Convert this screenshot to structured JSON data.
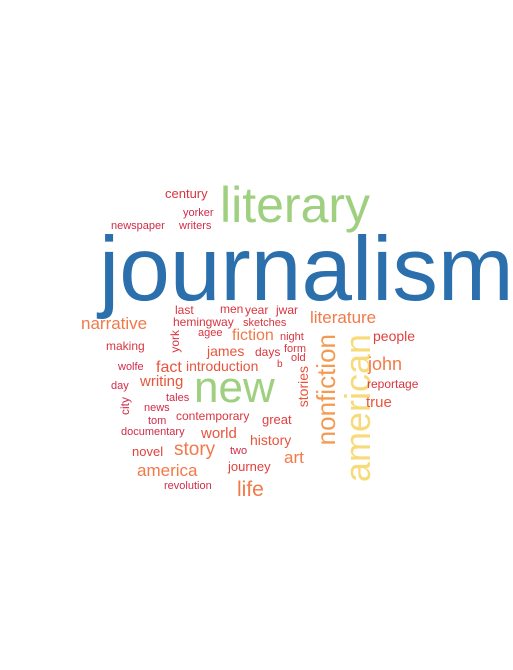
{
  "colors": {
    "blue": "#2b6fac",
    "green": "#9ed07f",
    "yellow": "#f7da79",
    "orange": "#f07a4a",
    "red_orange": "#e8553d",
    "crimson": "#cf2c49"
  },
  "words": [
    {
      "text": "journalism",
      "color": "#2b6fac"
    },
    {
      "text": "literary",
      "color": "#9ed07f"
    },
    {
      "text": "new",
      "color": "#9ed07f"
    },
    {
      "text": "american",
      "color": "#f7da79"
    },
    {
      "text": "nonfiction",
      "color": "#f39b53"
    },
    {
      "text": "life",
      "color": "#f07a4a"
    },
    {
      "text": "narrative",
      "color": "#f07a4a"
    },
    {
      "text": "literature",
      "color": "#f07a4a"
    },
    {
      "text": "john",
      "color": "#f07a4a"
    },
    {
      "text": "story",
      "color": "#f07a4a"
    },
    {
      "text": "america",
      "color": "#f07a4a"
    },
    {
      "text": "art",
      "color": "#f07a4a"
    },
    {
      "text": "fact",
      "color": "#e8553d"
    },
    {
      "text": "fiction",
      "color": "#f07a4a"
    },
    {
      "text": "writing",
      "color": "#e8553d"
    },
    {
      "text": "world",
      "color": "#e8553d"
    },
    {
      "text": "james",
      "color": "#e8553d"
    },
    {
      "text": "introduction",
      "color": "#e8553d"
    },
    {
      "text": "history",
      "color": "#e8553d"
    },
    {
      "text": "true",
      "color": "#e8553d"
    },
    {
      "text": "people",
      "color": "#e0413d"
    },
    {
      "text": "journey",
      "color": "#e0413d"
    },
    {
      "text": "novel",
      "color": "#e0413d"
    },
    {
      "text": "great",
      "color": "#e0413d"
    },
    {
      "text": "stories",
      "color": "#e8553d"
    },
    {
      "text": "contemporary",
      "color": "#d8353f"
    },
    {
      "text": "making",
      "color": "#d8353f"
    },
    {
      "text": "reportage",
      "color": "#d8353f"
    },
    {
      "text": "century",
      "color": "#d8353f"
    },
    {
      "text": "last",
      "color": "#d8353f"
    },
    {
      "text": "men",
      "color": "#d8353f"
    },
    {
      "text": "year",
      "color": "#d8353f"
    },
    {
      "text": "jwar",
      "color": "#d8353f"
    },
    {
      "text": "hemingway",
      "color": "#d8353f"
    },
    {
      "text": "sketches",
      "color": "#d8353f"
    },
    {
      "text": "agee",
      "color": "#d8353f"
    },
    {
      "text": "york",
      "color": "#d8353f"
    },
    {
      "text": "days",
      "color": "#d8353f"
    },
    {
      "text": "form",
      "color": "#d8353f"
    },
    {
      "text": "night",
      "color": "#d8353f"
    },
    {
      "text": "old",
      "color": "#d8353f"
    },
    {
      "text": "b",
      "color": "#d8353f"
    },
    {
      "text": "yorker",
      "color": "#cf2c49"
    },
    {
      "text": "writers",
      "color": "#cf2c49"
    },
    {
      "text": "newspaper",
      "color": "#cf2c49"
    },
    {
      "text": "wolfe",
      "color": "#cf2c49"
    },
    {
      "text": "day",
      "color": "#cf2c49"
    },
    {
      "text": "city",
      "color": "#cf2c49"
    },
    {
      "text": "tales",
      "color": "#cf2c49"
    },
    {
      "text": "news",
      "color": "#cf2c49"
    },
    {
      "text": "tom",
      "color": "#cf2c49"
    },
    {
      "text": "documentary",
      "color": "#cf2c49"
    },
    {
      "text": "two",
      "color": "#cf2c49"
    },
    {
      "text": "revolution",
      "color": "#cf2c49"
    }
  ]
}
